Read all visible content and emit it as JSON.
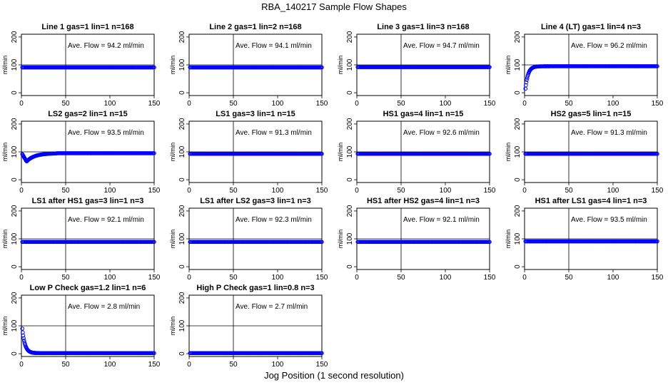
{
  "figure": {
    "title": "RBA_140217  Sample Flow Shapes",
    "xlabel": "Jog Position (1 second resolution)"
  },
  "colors": {
    "points": "#0000ff",
    "axes": "#000000"
  },
  "chart_data": [
    {
      "type": "scatter",
      "title": "Line 1 gas=1 lin=1 n=168",
      "ylabel": "ml/min",
      "annotation": "Ave. Flow = 94.2  ml/min",
      "xlim": [
        0,
        150
      ],
      "ylim": [
        -10,
        210
      ],
      "xticks": [
        0,
        50,
        100,
        150
      ],
      "yticks": [
        0,
        100,
        200
      ],
      "hline": 100,
      "vline": 50,
      "shape": "flat",
      "level": 91
    },
    {
      "type": "scatter",
      "title": "Line 2 gas=1 lin=2 n=168",
      "ylabel": "ml/min",
      "annotation": "Ave. Flow = 94.1  ml/min",
      "xlim": [
        0,
        150
      ],
      "ylim": [
        -10,
        210
      ],
      "xticks": [
        0,
        50,
        100,
        150
      ],
      "yticks": [
        0,
        100,
        200
      ],
      "hline": 100,
      "vline": 50,
      "shape": "flat",
      "level": 91
    },
    {
      "type": "scatter",
      "title": "Line 3 gas=1 lin=3 n=168",
      "ylabel": "ml/min",
      "annotation": "Ave. Flow = 94.7  ml/min",
      "xlim": [
        0,
        150
      ],
      "ylim": [
        -10,
        210
      ],
      "xticks": [
        0,
        50,
        100,
        150
      ],
      "yticks": [
        0,
        100,
        200
      ],
      "hline": 100,
      "vline": 50,
      "shape": "flat",
      "level": 92
    },
    {
      "type": "scatter",
      "title": "Line 4 (LT) gas=1 lin=4 n=3",
      "ylabel": "ml/min",
      "annotation": "Ave. Flow = 96.2  ml/min",
      "xlim": [
        0,
        150
      ],
      "ylim": [
        -10,
        210
      ],
      "xticks": [
        0,
        50,
        100,
        150
      ],
      "yticks": [
        0,
        100,
        200
      ],
      "hline": 100,
      "vline": 50,
      "shape": "rise",
      "level": 95
    },
    {
      "type": "scatter",
      "title": "LS2 gas=2 lin=1 n=15",
      "ylabel": "ml/min",
      "annotation": "Ave. Flow = 93.5  ml/min",
      "xlim": [
        0,
        150
      ],
      "ylim": [
        -10,
        210
      ],
      "xticks": [
        0,
        50,
        100,
        150
      ],
      "yticks": [
        0,
        100,
        200
      ],
      "hline": 100,
      "vline": 50,
      "shape": "dip",
      "level": 95
    },
    {
      "type": "scatter",
      "title": "LS1 gas=3 lin=1 n=15",
      "ylabel": "ml/min",
      "annotation": "Ave. Flow = 91.3  ml/min",
      "xlim": [
        0,
        150
      ],
      "ylim": [
        -10,
        210
      ],
      "xticks": [
        0,
        50,
        100,
        150
      ],
      "yticks": [
        0,
        100,
        200
      ],
      "hline": 100,
      "vline": 50,
      "shape": "flat",
      "level": 93
    },
    {
      "type": "scatter",
      "title": "HS1 gas=4 lin=1 n=15",
      "ylabel": "ml/min",
      "annotation": "Ave. Flow = 92.6  ml/min",
      "xlim": [
        0,
        150
      ],
      "ylim": [
        -10,
        210
      ],
      "xticks": [
        0,
        50,
        100,
        150
      ],
      "yticks": [
        0,
        100,
        200
      ],
      "hline": 100,
      "vline": 50,
      "shape": "flat",
      "level": 93
    },
    {
      "type": "scatter",
      "title": "HS2 gas=5 lin=1 n=15",
      "ylabel": "ml/min",
      "annotation": "Ave. Flow = 91.3  ml/min",
      "xlim": [
        0,
        150
      ],
      "ylim": [
        -10,
        210
      ],
      "xticks": [
        0,
        50,
        100,
        150
      ],
      "yticks": [
        0,
        100,
        200
      ],
      "hline": 100,
      "vline": 50,
      "shape": "flat",
      "level": 93
    },
    {
      "type": "scatter",
      "title": "LS1 after HS1 gas=3 lin=1 n=3",
      "ylabel": "ml/min",
      "annotation": "Ave. Flow = 92.1  ml/min",
      "xlim": [
        0,
        150
      ],
      "ylim": [
        -10,
        210
      ],
      "xticks": [
        0,
        50,
        100,
        150
      ],
      "yticks": [
        0,
        100,
        200
      ],
      "hline": 100,
      "vline": 50,
      "shape": "flat",
      "level": 89
    },
    {
      "type": "scatter",
      "title": "LS1 after LS2 gas=3 lin=1 n=3",
      "ylabel": "ml/min",
      "annotation": "Ave. Flow = 92.3  ml/min",
      "xlim": [
        0,
        150
      ],
      "ylim": [
        -10,
        210
      ],
      "xticks": [
        0,
        50,
        100,
        150
      ],
      "yticks": [
        0,
        100,
        200
      ],
      "hline": 100,
      "vline": 50,
      "shape": "flat",
      "level": 89
    },
    {
      "type": "scatter",
      "title": "HS1 after HS2 gas=4 lin=1 n=3",
      "ylabel": "ml/min",
      "annotation": "Ave. Flow = 92.1  ml/min",
      "xlim": [
        0,
        150
      ],
      "ylim": [
        -10,
        210
      ],
      "xticks": [
        0,
        50,
        100,
        150
      ],
      "yticks": [
        0,
        100,
        200
      ],
      "hline": 100,
      "vline": 50,
      "shape": "flat",
      "level": 89
    },
    {
      "type": "scatter",
      "title": "HS1 after LS1 gas=4 lin=1 n=3",
      "ylabel": "ml/min",
      "annotation": "Ave. Flow = 93.5  ml/min",
      "xlim": [
        0,
        150
      ],
      "ylim": [
        -10,
        210
      ],
      "xticks": [
        0,
        50,
        100,
        150
      ],
      "yticks": [
        0,
        100,
        200
      ],
      "hline": 100,
      "vline": 50,
      "shape": "flat",
      "level": 91
    },
    {
      "type": "scatter",
      "title": "Low P Check gas=1.2 lin=1 n=6",
      "ylabel": "ml/min",
      "annotation": "Ave. Flow = 2.8  ml/min",
      "xlim": [
        0,
        150
      ],
      "ylim": [
        -10,
        210
      ],
      "xticks": [
        0,
        50,
        100,
        150
      ],
      "yticks": [
        0,
        100,
        200
      ],
      "hline": 100,
      "vline": 50,
      "shape": "decay",
      "level": 2
    },
    {
      "type": "scatter",
      "title": "High P Check gas=1 lin=0.8 n=3",
      "ylabel": "ml/min",
      "annotation": "Ave. Flow = 2.7  ml/min",
      "xlim": [
        0,
        150
      ],
      "ylim": [
        -10,
        210
      ],
      "xticks": [
        0,
        50,
        100,
        150
      ],
      "yticks": [
        0,
        100,
        200
      ],
      "hline": 100,
      "vline": 50,
      "shape": "flat",
      "level": 2
    }
  ]
}
